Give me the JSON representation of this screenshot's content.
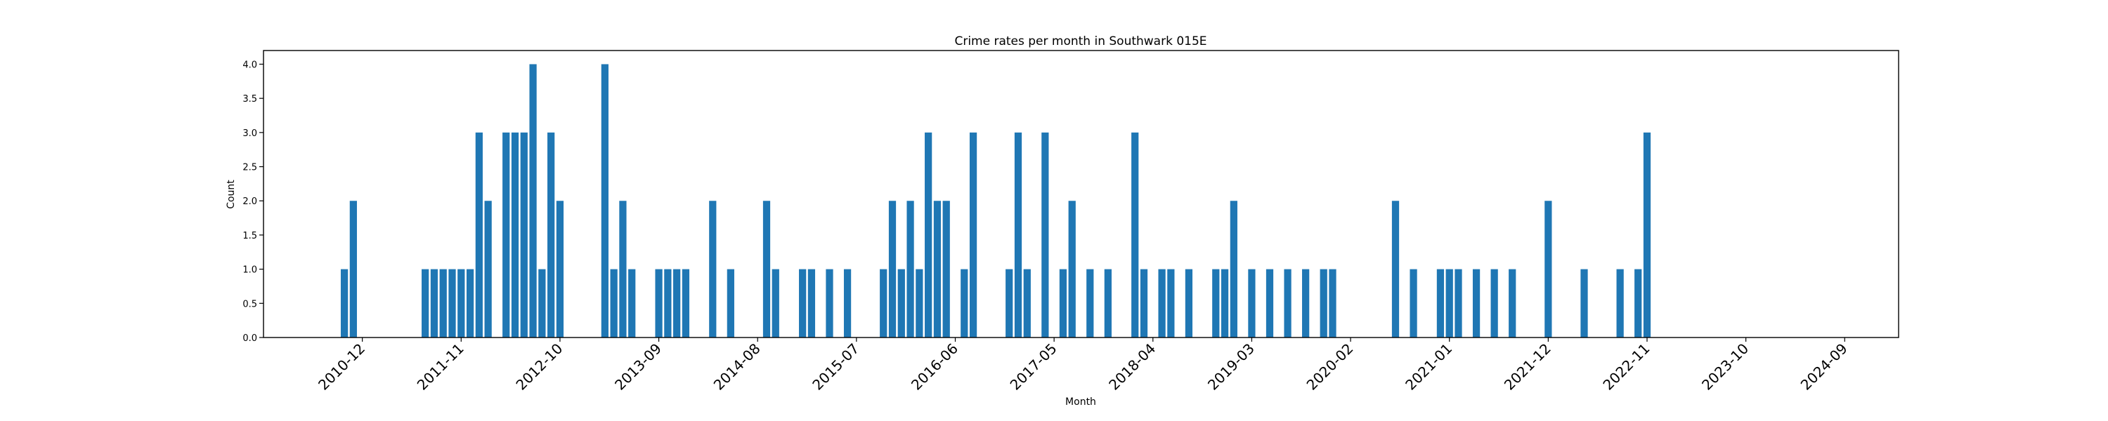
{
  "chart_data": {
    "type": "bar",
    "title": "Crime rates per month in Southwark 015E",
    "xlabel": "Month",
    "ylabel": "Count",
    "ylim": [
      0,
      4.2
    ],
    "xlim": [
      "2010-01",
      "2025-03"
    ],
    "grid": false,
    "color": "#1f77b4",
    "y_ticks": [
      "0.0",
      "0.5",
      "1.0",
      "1.5",
      "2.0",
      "2.5",
      "3.0",
      "3.5",
      "4.0"
    ],
    "x_ticks": [
      "2010-12",
      "2011-11",
      "2012-10",
      "2013-09",
      "2014-08",
      "2015-07",
      "2016-06",
      "2017-05",
      "2018-04",
      "2019-03",
      "2020-02",
      "2021-01",
      "2021-12",
      "2022-11",
      "2023-10",
      "2024-09"
    ],
    "x": [
      "2010-10",
      "2010-11",
      "2011-07",
      "2011-08",
      "2011-09",
      "2011-10",
      "2011-11",
      "2011-12",
      "2012-01",
      "2012-02",
      "2012-04",
      "2012-05",
      "2012-06",
      "2012-07",
      "2012-08",
      "2012-09",
      "2012-10",
      "2013-03",
      "2013-04",
      "2013-05",
      "2013-06",
      "2013-09",
      "2013-10",
      "2013-11",
      "2013-12",
      "2014-03",
      "2014-05",
      "2014-09",
      "2014-10",
      "2015-01",
      "2015-02",
      "2015-04",
      "2015-06",
      "2015-10",
      "2015-11",
      "2015-12",
      "2016-01",
      "2016-02",
      "2016-03",
      "2016-04",
      "2016-05",
      "2016-07",
      "2016-08",
      "2016-12",
      "2017-01",
      "2017-02",
      "2017-04",
      "2017-06",
      "2017-07",
      "2017-09",
      "2017-11",
      "2018-02",
      "2018-03",
      "2018-05",
      "2018-06",
      "2018-08",
      "2018-11",
      "2018-12",
      "2019-01",
      "2019-03",
      "2019-05",
      "2019-07",
      "2019-09",
      "2019-11",
      "2019-12",
      "2020-07",
      "2020-09",
      "2020-12",
      "2021-01",
      "2021-02",
      "2021-04",
      "2021-06",
      "2021-08",
      "2021-12",
      "2022-04",
      "2022-08",
      "2022-10",
      "2022-11"
    ],
    "values": [
      1,
      2,
      1,
      1,
      1,
      1,
      1,
      1,
      3,
      2,
      3,
      3,
      3,
      4,
      1,
      3,
      2,
      4,
      1,
      2,
      1,
      1,
      1,
      1,
      1,
      2,
      1,
      2,
      1,
      1,
      1,
      1,
      1,
      1,
      2,
      1,
      2,
      1,
      3,
      2,
      2,
      1,
      3,
      1,
      3,
      1,
      3,
      1,
      2,
      1,
      1,
      3,
      1,
      1,
      1,
      1,
      1,
      1,
      2,
      1,
      1,
      1,
      1,
      1,
      1,
      2,
      1,
      1,
      1,
      1,
      1,
      1,
      1,
      2,
      1,
      1,
      1,
      3
    ]
  }
}
